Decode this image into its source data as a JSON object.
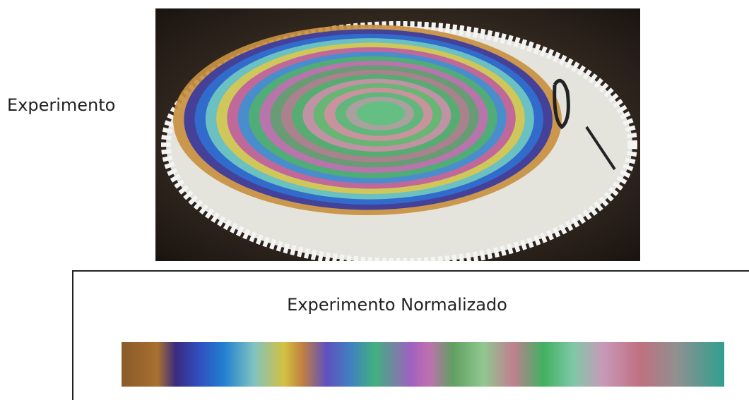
{
  "labels": {
    "experiment": "Experimento",
    "normalized": "Experimento Normalizado"
  }
}
